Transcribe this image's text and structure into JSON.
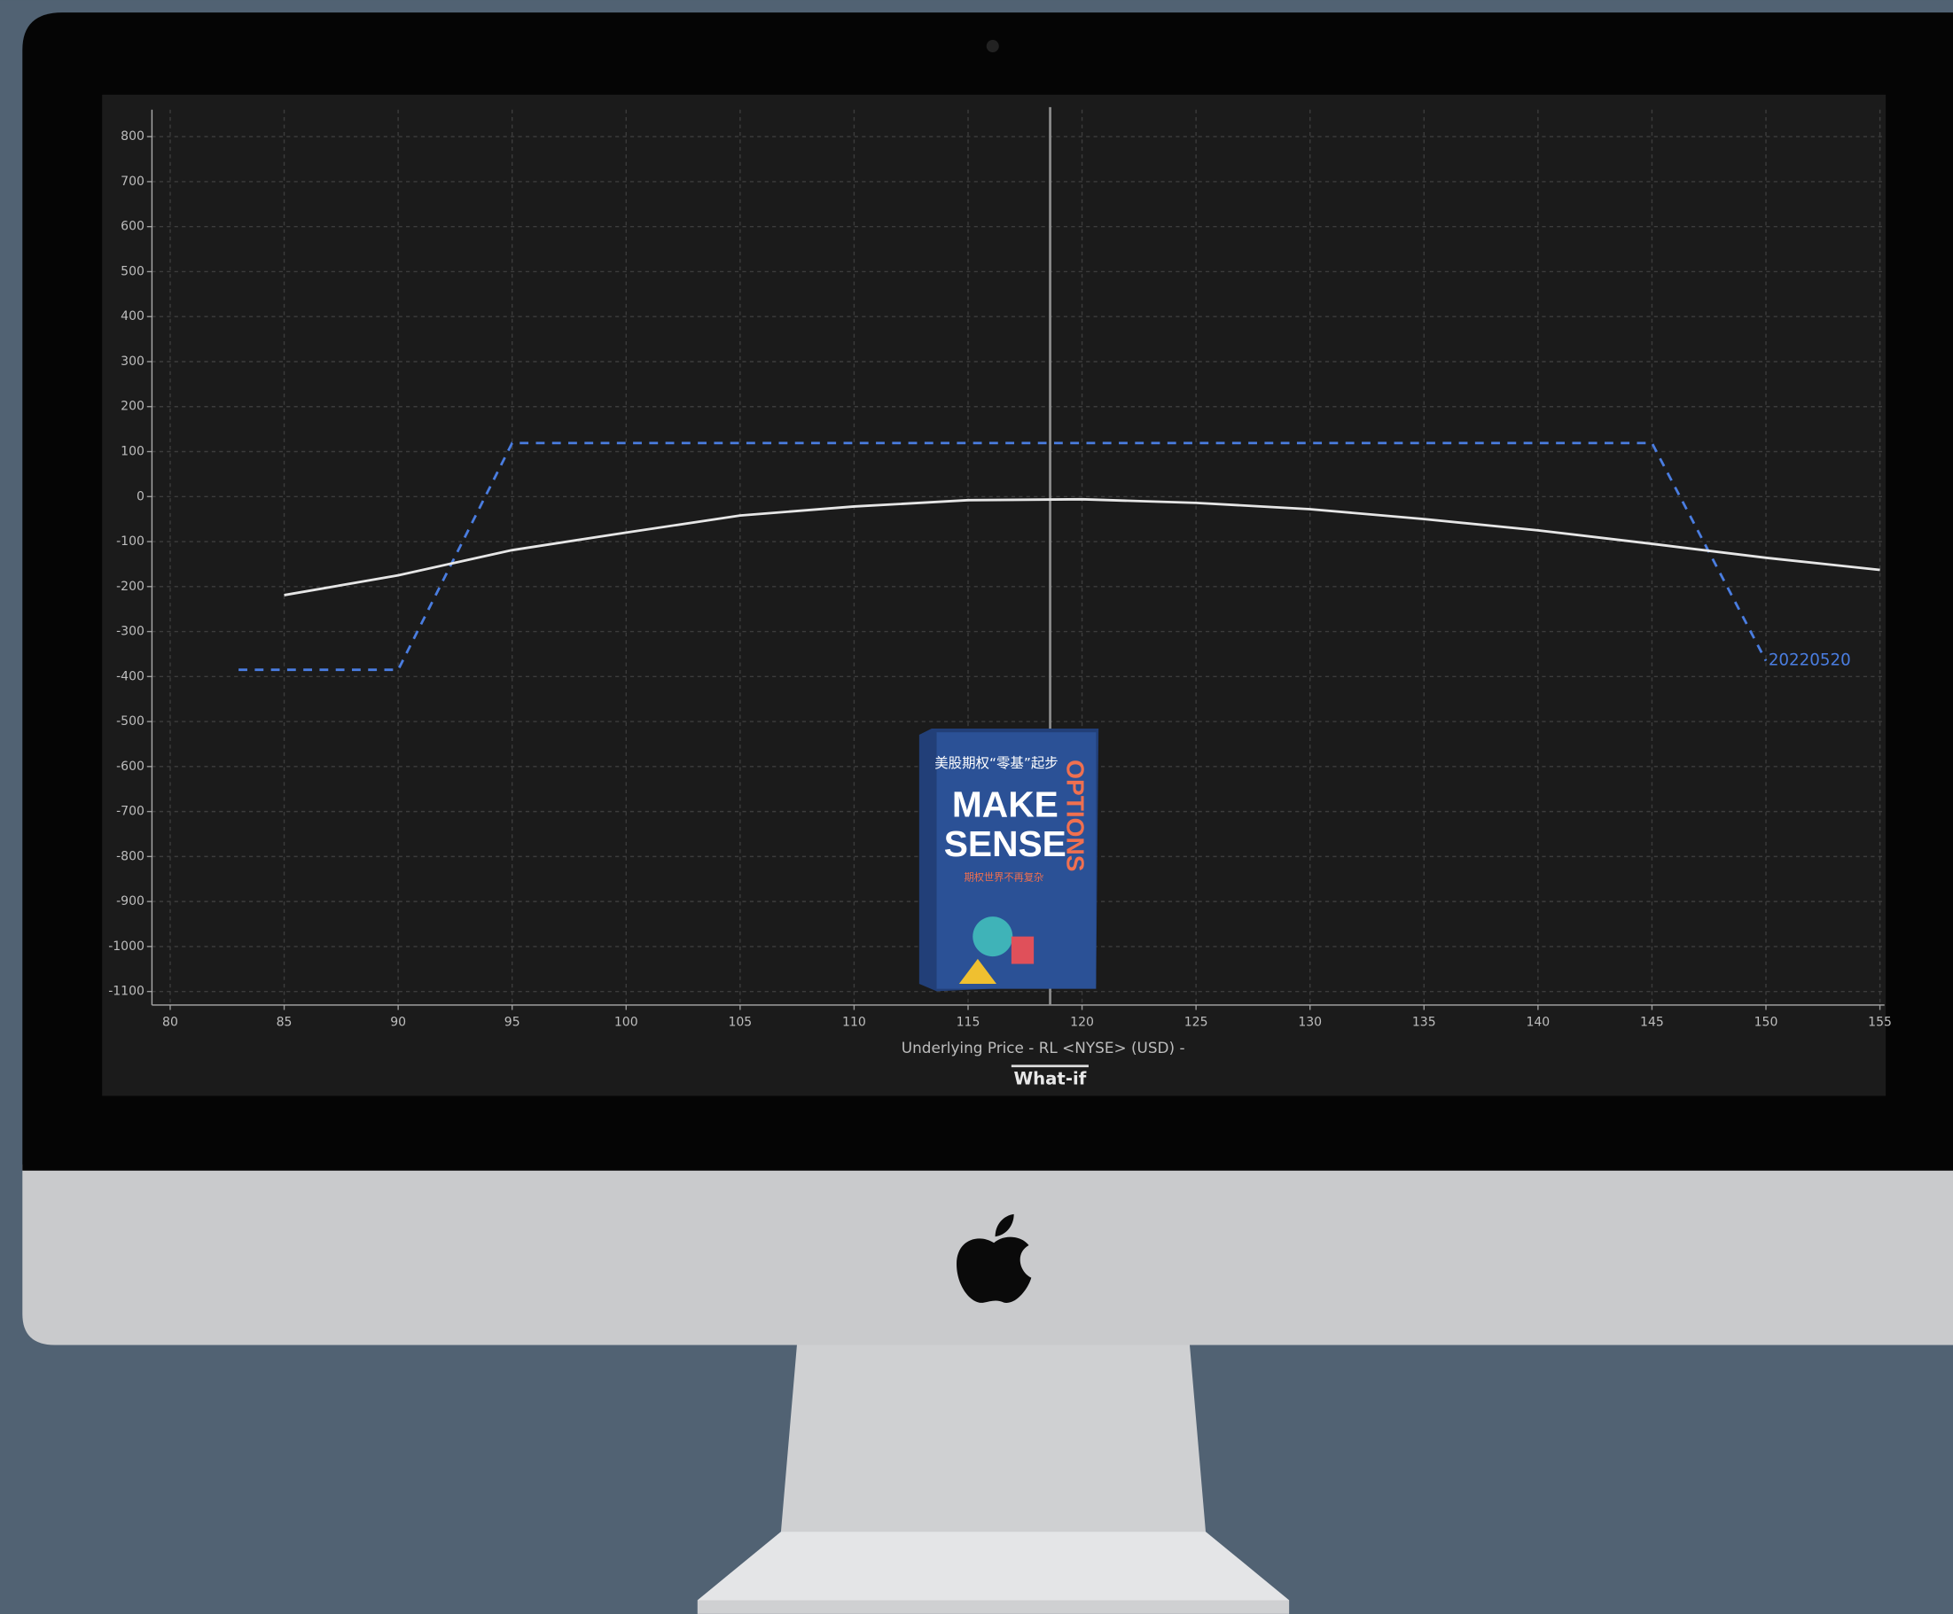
{
  "chart_data": {
    "type": "line",
    "xlabel": "Underlying Price - RL <NYSE> (USD) -",
    "xlim": [
      79.2,
      155.2
    ],
    "ylim": [
      -1130,
      860
    ],
    "xticks": [
      80,
      85,
      90,
      95,
      100,
      105,
      110,
      115,
      120,
      125,
      130,
      135,
      140,
      145,
      150,
      155
    ],
    "yticks": [
      800,
      700,
      600,
      500,
      400,
      300,
      200,
      100,
      0,
      -100,
      -200,
      -300,
      -400,
      -500,
      -600,
      -700,
      -800,
      -900,
      -1000,
      -1100
    ],
    "grid": true,
    "marker_x": 118.6,
    "series": [
      {
        "name": "20220520",
        "color": "#4a7de0",
        "dashed": true,
        "x": [
          83,
          90,
          95,
          145,
          150
        ],
        "values": [
          -385,
          -385,
          119,
          119,
          -365
        ]
      },
      {
        "color": "#e6e6e6",
        "dashed": false,
        "x": [
          85,
          90,
          95,
          100,
          105,
          110,
          115,
          120,
          125,
          130,
          135,
          140,
          145,
          150,
          155
        ],
        "values": [
          -219,
          -175,
          -119,
          -80,
          -42,
          -22,
          -8,
          -6,
          -14,
          -28,
          -50,
          -75,
          -105,
          -136,
          -163
        ]
      }
    ]
  },
  "button": "What-if",
  "book": {
    "top": "美股期权“零基”起步",
    "line1": "MAKE",
    "line2": "SENSE",
    "side": "OPTIONS",
    "sub": "期权世界不再复杂"
  }
}
